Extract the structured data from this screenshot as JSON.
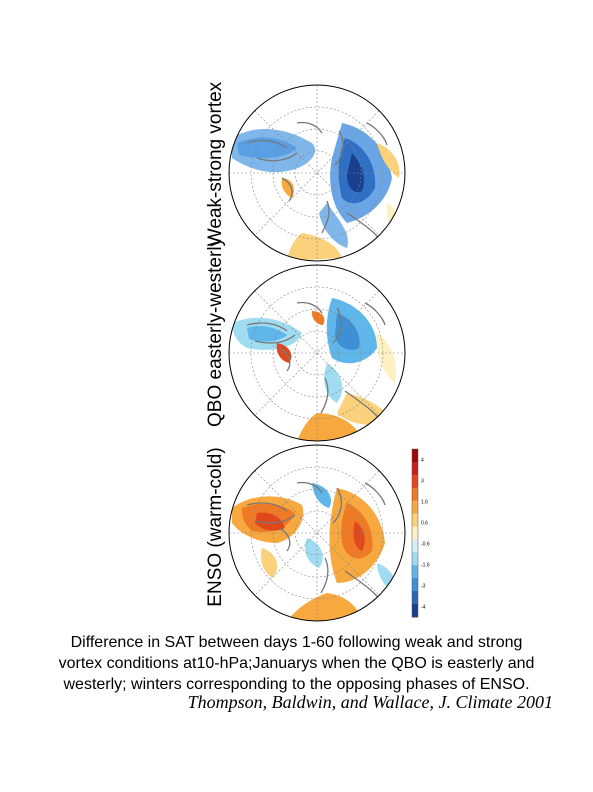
{
  "panels": [
    {
      "label": "Weak-strong vortex"
    },
    {
      "label": "QBO easterly-westerly"
    },
    {
      "label": "ENSO (warm-cold)"
    }
  ],
  "colorbar": {
    "ticks": [
      "4",
      "3",
      "1.6",
      "0.6",
      "-0.6",
      "-1.6",
      "-3",
      "-4"
    ],
    "colors": [
      "#9b0a0a",
      "#c62020",
      "#e2471c",
      "#ef7a26",
      "#f7a83e",
      "#fbd17c",
      "#fdf0c4",
      "#d6f0f8",
      "#9fdcf2",
      "#5fb6ea",
      "#3d8fd6",
      "#2a67b5",
      "#1b3f8f"
    ]
  },
  "caption": {
    "line1": "Difference in SAT between days 1-60 following weak and strong",
    "line2": "vortex conditions at10-hPa;Januarys when the QBO is easterly and",
    "line3": "westerly; winters corresponding to the opposing phases of ENSO."
  },
  "citation": "Thompson, Baldwin, and Wallace, J. Climate 2001"
}
